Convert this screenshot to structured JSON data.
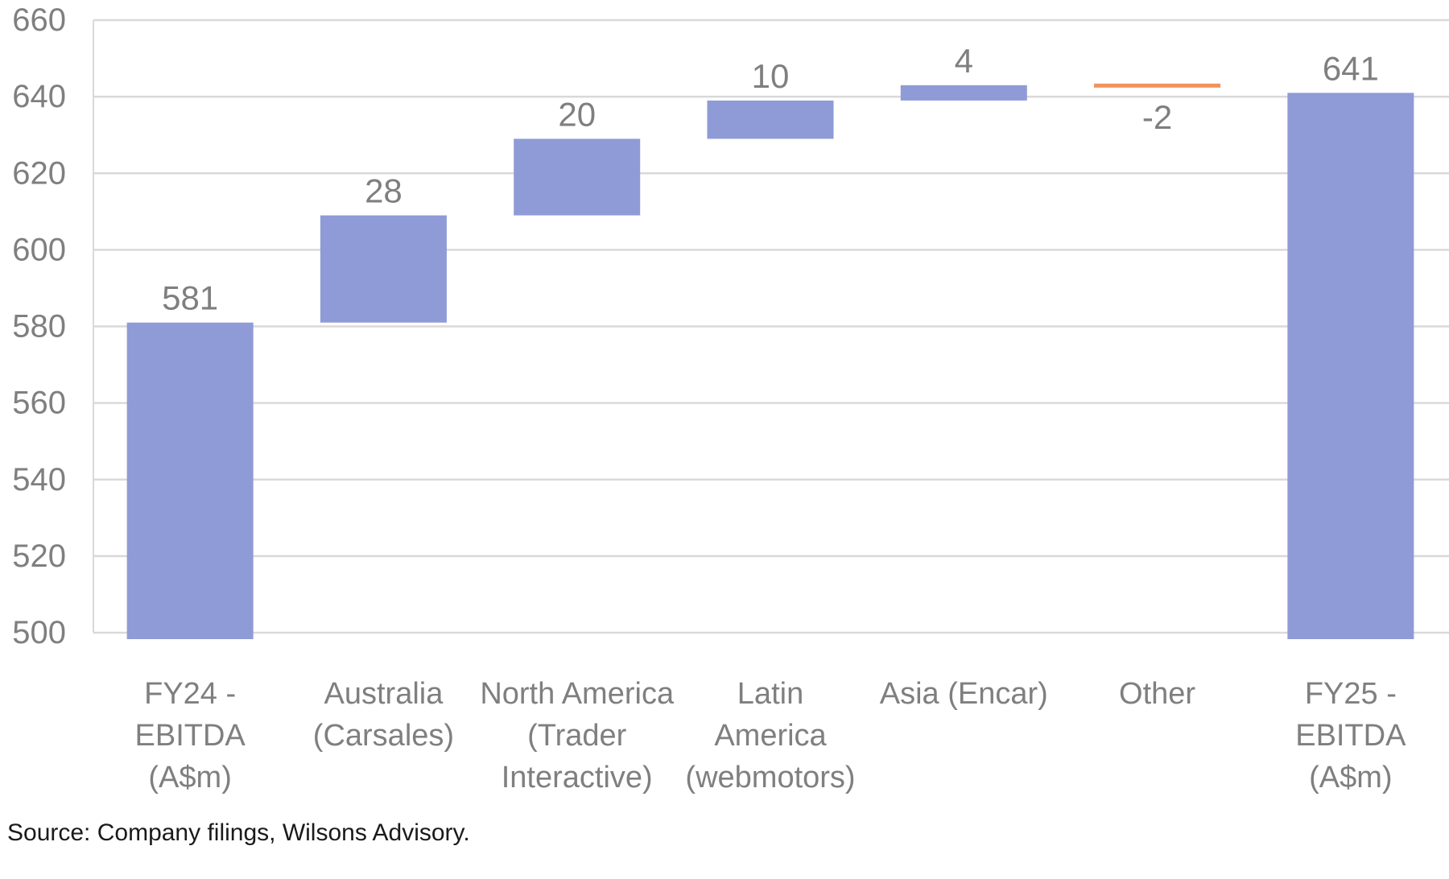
{
  "chart_data": {
    "type": "bar",
    "subtype": "waterfall",
    "categories": [
      [
        "FY24 -",
        "EBITDA",
        "(A$m)"
      ],
      [
        "Australia",
        "(Carsales)"
      ],
      [
        "North America",
        "(Trader",
        "Interactive)"
      ],
      [
        "Latin",
        "America",
        "(webmotors)"
      ],
      [
        "Asia (Encar)"
      ],
      [
        "Other"
      ],
      [
        "FY25 -",
        "EBITDA",
        "(A$m)"
      ]
    ],
    "values": [
      581,
      28,
      20,
      10,
      4,
      -2,
      641
    ],
    "bar_kinds": [
      "total",
      "delta",
      "delta",
      "delta",
      "delta",
      "delta",
      "total"
    ],
    "data_labels": [
      "581",
      "28",
      "20",
      "10",
      "4",
      "-2",
      "641"
    ],
    "ranges": [
      [
        0,
        581
      ],
      [
        581,
        609
      ],
      [
        609,
        629
      ],
      [
        629,
        639
      ],
      [
        639,
        643
      ],
      [
        643,
        641
      ],
      [
        0,
        641
      ]
    ],
    "ylim": [
      500,
      660
    ],
    "yticks": [
      500,
      520,
      540,
      560,
      580,
      600,
      620,
      640,
      660
    ],
    "ytick_labels": [
      "500",
      "520",
      "540",
      "560",
      "580",
      "600",
      "620",
      "640",
      "660"
    ],
    "xlabel": "",
    "ylabel": "",
    "title": "",
    "grid": true,
    "legend": "none",
    "colors": {
      "increase": "#8e9bd6",
      "decrease": "#f0935d",
      "total": "#8e9bd6",
      "grid": "#d9d9d9",
      "tick_text": "#7f7f7f",
      "label_text": "#7f7f7f"
    }
  },
  "footer": {
    "source": "Source: Company filings, Wilsons Advisory."
  }
}
